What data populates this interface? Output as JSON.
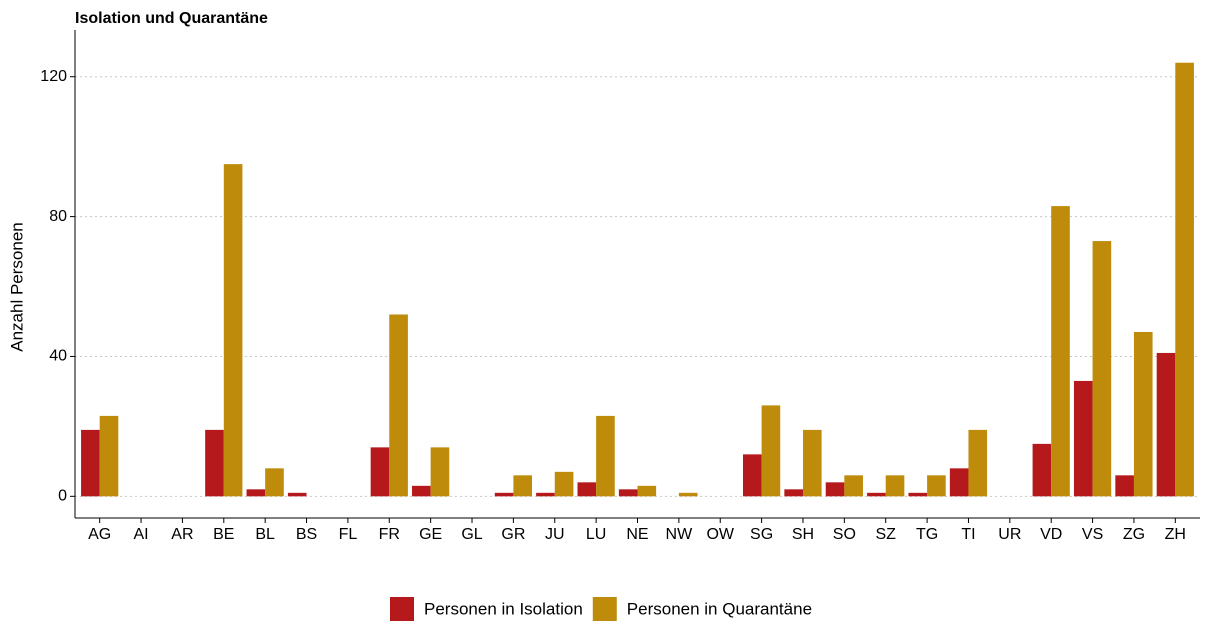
{
  "chart_data": {
    "type": "bar",
    "title": "Isolation und Quarantäne",
    "y_label": "Anzahl Personen",
    "categories": [
      "AG",
      "AI",
      "AR",
      "BE",
      "BL",
      "BS",
      "FL",
      "FR",
      "GE",
      "GL",
      "GR",
      "JU",
      "LU",
      "NE",
      "NW",
      "OW",
      "SG",
      "SH",
      "SO",
      "SZ",
      "TG",
      "TI",
      "UR",
      "VD",
      "VS",
      "ZG",
      "ZH"
    ],
    "series": [
      {
        "name": "Personen in Isolation",
        "color": "#b5191b",
        "values": [
          19,
          0,
          0,
          19,
          2,
          1,
          0,
          14,
          3,
          0,
          1,
          1,
          4,
          2,
          0,
          0,
          12,
          2,
          4,
          1,
          1,
          8,
          0,
          15,
          33,
          6,
          41
        ]
      },
      {
        "name": "Personen in Quarantäne",
        "color": "#be8b0a",
        "values": [
          23,
          0,
          0,
          95,
          8,
          0,
          0,
          52,
          14,
          0,
          6,
          7,
          23,
          3,
          1,
          0,
          26,
          19,
          6,
          6,
          6,
          19,
          0,
          83,
          73,
          47,
          124
        ]
      }
    ],
    "ylim": [
      -6.2,
      130.5
    ],
    "yticks": [
      0,
      40,
      80,
      120
    ],
    "grid": true,
    "legend": "bottom"
  }
}
